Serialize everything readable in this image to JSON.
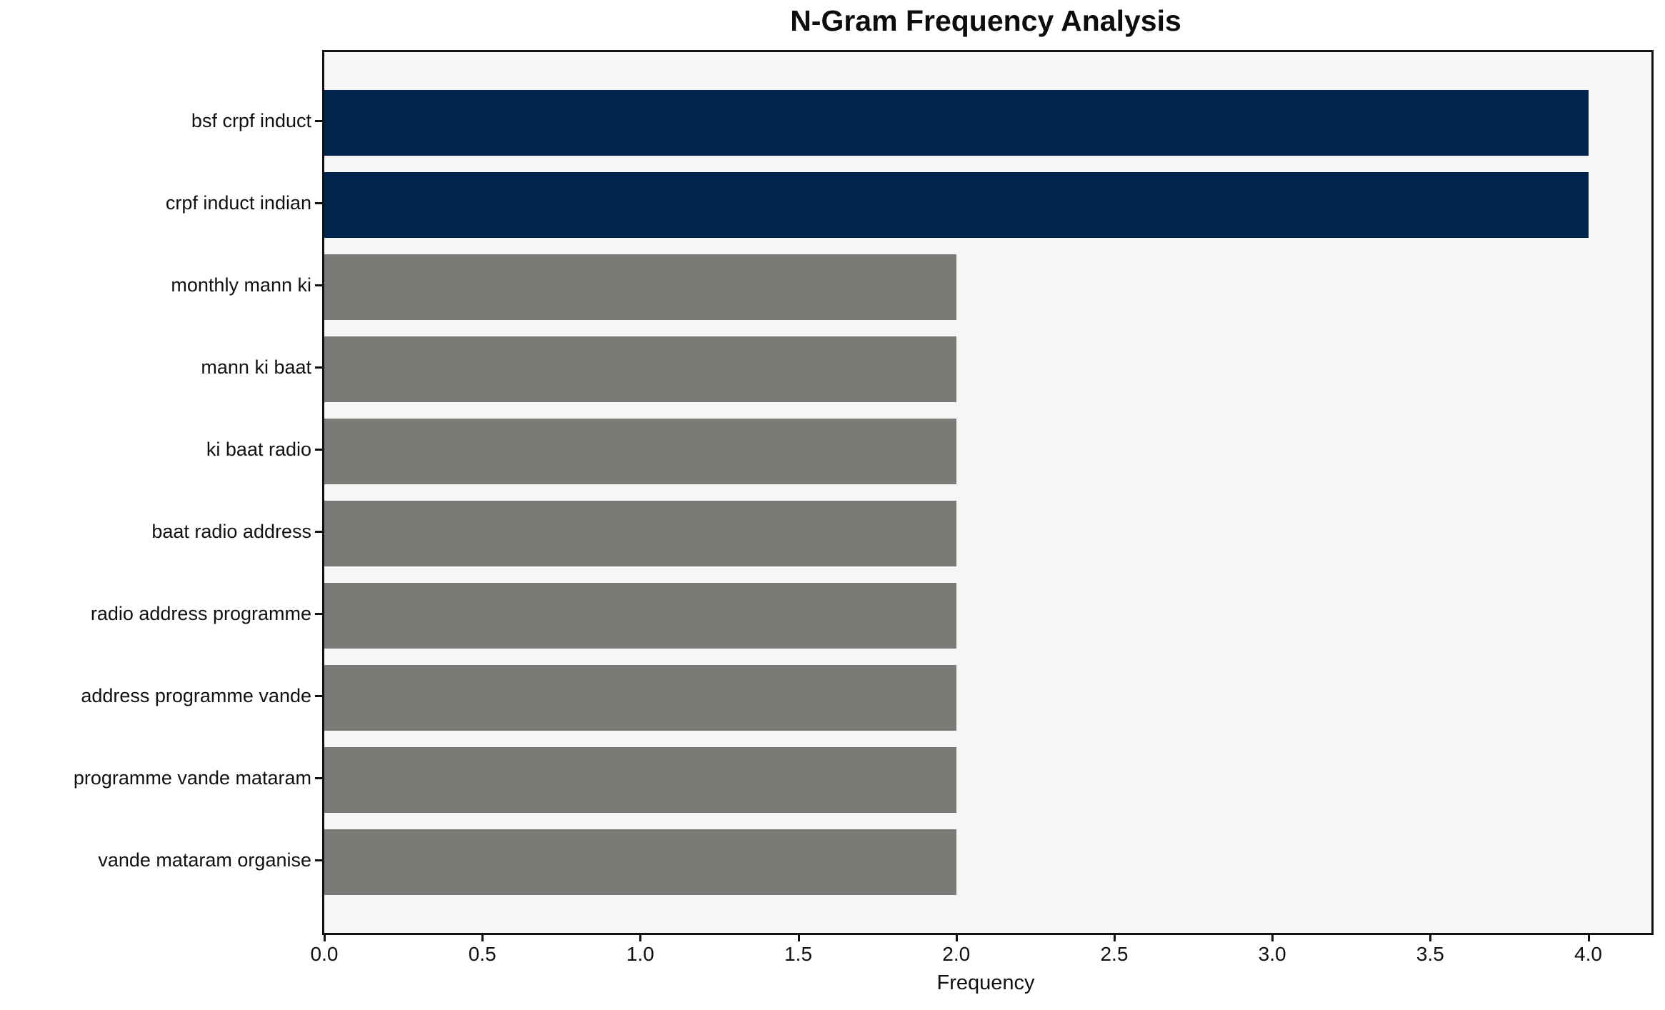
{
  "title": "N-Gram Frequency Analysis",
  "x_axis_label": "Frequency",
  "chart_data": {
    "type": "bar",
    "orientation": "horizontal",
    "title": "N-Gram Frequency Analysis",
    "xlabel": "Frequency",
    "ylabel": "",
    "categories": [
      "bsf crpf induct",
      "crpf induct indian",
      "monthly mann ki",
      "mann ki baat",
      "ki baat radio",
      "baat radio address",
      "radio address programme",
      "address programme vande",
      "programme vande mataram",
      "vande mataram organise"
    ],
    "values": [
      4,
      4,
      2,
      2,
      2,
      2,
      2,
      2,
      2,
      2
    ],
    "bar_colors": [
      "#02244e",
      "#02244e",
      "#7b7a77",
      "#7b7a77",
      "#7b7a77",
      "#7b7a77",
      "#7b7a77",
      "#7b7a77",
      "#7b7a77",
      "#7b7a77"
    ],
    "xlim": [
      0,
      4.2
    ],
    "x_ticks": [
      0.0,
      0.5,
      1.0,
      1.5,
      2.0,
      2.5,
      3.0,
      3.5,
      4.0
    ],
    "x_tick_labels": [
      "0.0",
      "0.5",
      "1.0",
      "1.5",
      "2.0",
      "2.5",
      "3.0",
      "3.5",
      "4.0"
    ],
    "grid": false,
    "legend": null,
    "colors": {
      "highlight_bar": "#02244e",
      "default_bar": "#7b7a77",
      "plot_background": "#f7f6f6",
      "figure_background": "#ffffff",
      "spine": "#121212",
      "text": "#111111"
    }
  }
}
